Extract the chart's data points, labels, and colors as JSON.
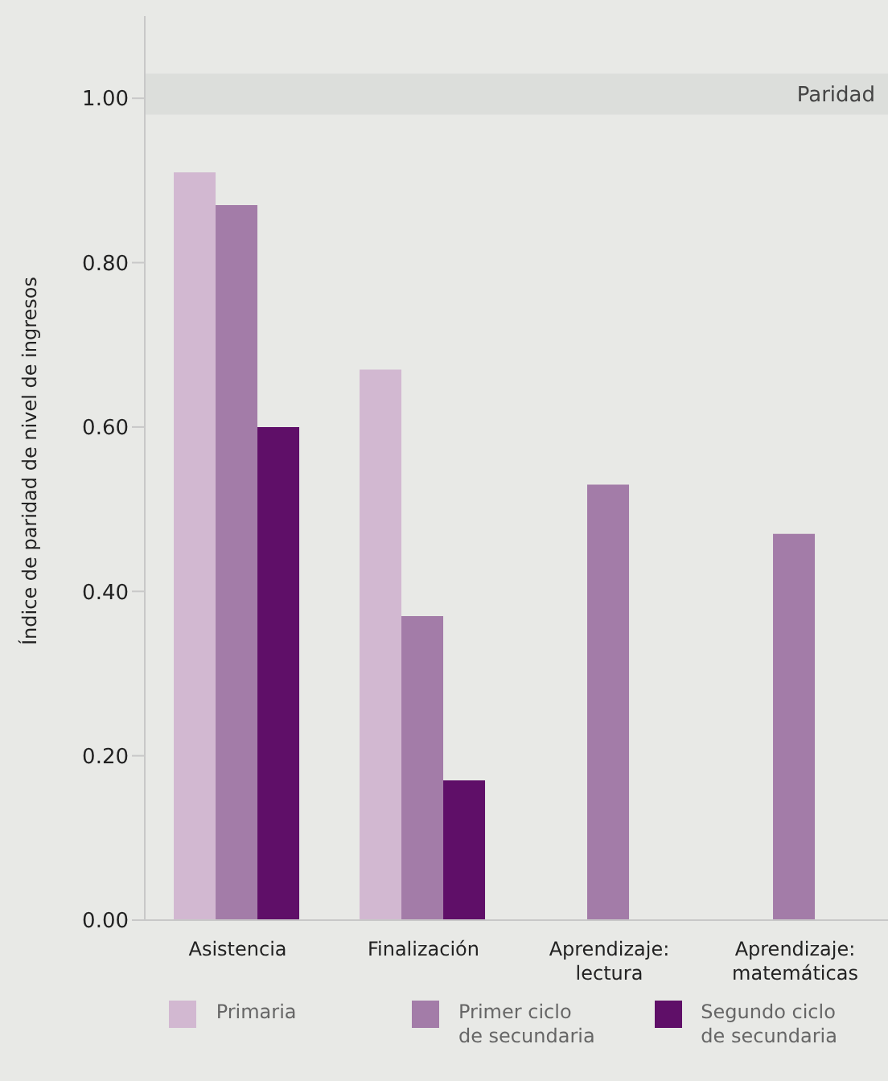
{
  "chart_data": {
    "type": "bar",
    "ylabel": "Índice de paridad de nivel de ingresos",
    "categories": [
      "Asistencia",
      "Finalización",
      "Aprendizaje: lectura",
      "Aprendizaje: matemáticas"
    ],
    "series": [
      {
        "name": "Primaria",
        "color": "#d2b8d1",
        "values": [
          0.91,
          0.67,
          null,
          null
        ]
      },
      {
        "name": "Primer ciclo de secundaria",
        "color": "#a37ca8",
        "values": [
          0.87,
          0.37,
          0.53,
          0.47
        ]
      },
      {
        "name": "Segundo ciclo de secundaria",
        "color": "#5f0f68",
        "values": [
          0.6,
          0.17,
          null,
          null
        ]
      }
    ],
    "ylim": [
      0,
      1.1
    ],
    "yticks": [
      {
        "value": 0,
        "label": "0.00"
      },
      {
        "value": 0.2,
        "label": "0.20"
      },
      {
        "value": 0.4,
        "label": "0.40"
      },
      {
        "value": 0.6,
        "label": "0.60"
      },
      {
        "value": 0.8,
        "label": "0.80"
      },
      {
        "value": 1,
        "label": "1.00"
      }
    ],
    "bands": [
      {
        "axis": "y",
        "from": 0.98,
        "to": 1.03,
        "label": "Paridad",
        "color": "#dcdedb"
      }
    ],
    "grid": false,
    "legend": "bottom"
  }
}
